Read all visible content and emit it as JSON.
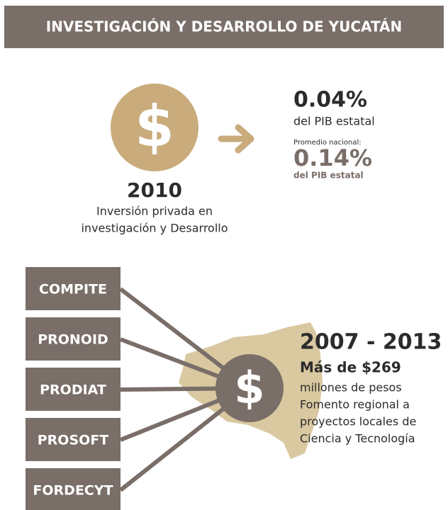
{
  "header": {
    "title": "INVESTIGACIÓN Y DESARROLLO DE YUCATÁN"
  },
  "investment": {
    "symbol": "$",
    "year": "2010",
    "description": [
      "Inversión privada en",
      "investigación y Desarrollo"
    ],
    "state_share": "0.04%",
    "state_share_note": "del PIB estatal",
    "national_label": "Promedio nacional:",
    "national_share": "0.14%",
    "national_share_note": "del PIB estatal"
  },
  "programs": {
    "items": [
      "COMPITE",
      "PRONOID",
      "PRODIAT",
      "PROSOFT",
      "FORDECYT"
    ],
    "symbol": "$",
    "period": "2007 - 2013",
    "amount": "Más de $269",
    "description": [
      "millones de pesos",
      "Fomento regional a",
      "proyectos locales de",
      "Ciencia y Tecnología"
    ]
  }
}
